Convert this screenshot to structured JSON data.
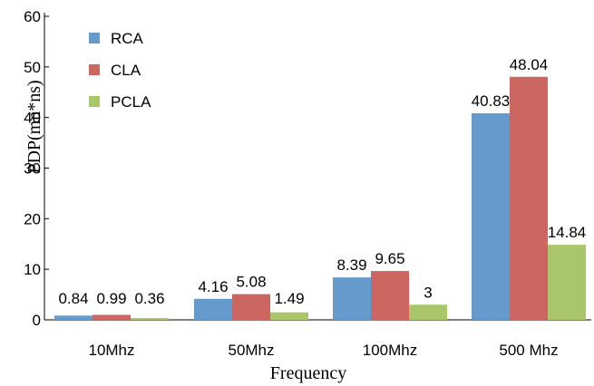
{
  "chart_data": {
    "type": "bar",
    "categories": [
      "10Mhz",
      "50Mhz",
      "100Mhz",
      "500 Mhz"
    ],
    "series": [
      {
        "name": "RCA",
        "color": "#6699cc",
        "values": [
          0.84,
          4.16,
          8.39,
          40.83
        ],
        "labels": [
          "0.84",
          "4.16",
          "8.39",
          "40.83"
        ]
      },
      {
        "name": "CLA",
        "color": "#cc6661",
        "values": [
          0.99,
          5.08,
          9.65,
          48.04
        ],
        "labels": [
          "0.99",
          "5.08",
          "9.65",
          "48.04"
        ]
      },
      {
        "name": "PCLA",
        "color": "#a8c76b",
        "values": [
          0.36,
          1.49,
          3,
          14.84
        ],
        "labels": [
          "0.36",
          "1.49",
          "3",
          "14.84"
        ]
      }
    ],
    "xlabel": "Frequency",
    "ylabel": "PDP(mn*ns)",
    "ylim": [
      0,
      60
    ],
    "yticks": [
      0,
      10,
      20,
      30,
      40,
      50,
      60
    ],
    "legend_position": "top-left",
    "grid": false
  }
}
